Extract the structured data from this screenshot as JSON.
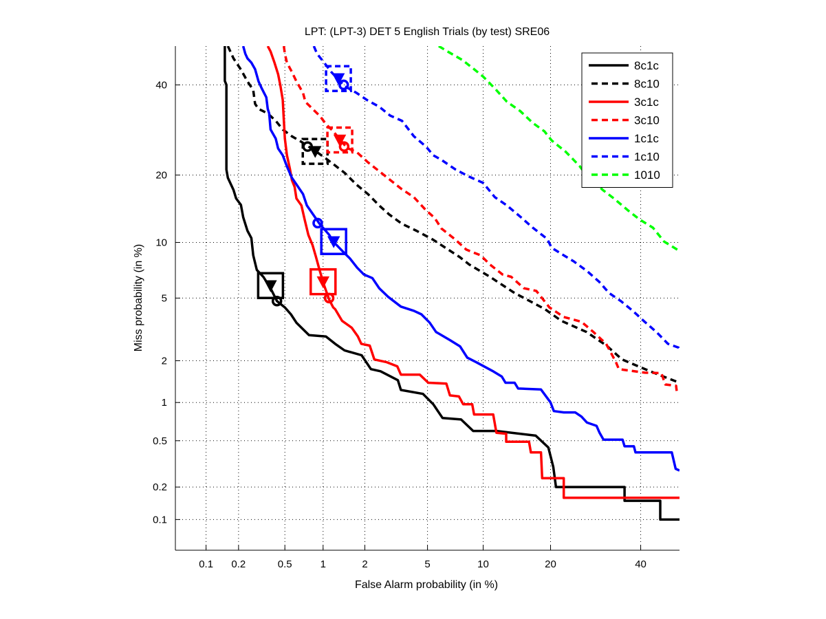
{
  "chart_data": {
    "type": "line",
    "scale": "normal-deviate (DET)",
    "title": "LPT: (LPT-3) DET 5 English Trials (by test) SRE06",
    "xlabel": "False Alarm probability (in %)",
    "ylabel": "Miss probability (in %)",
    "xlim": [
      0.05,
      50
    ],
    "ylim": [
      0.05,
      50
    ],
    "xticks": [
      0.1,
      0.2,
      0.5,
      1,
      2,
      5,
      10,
      20,
      40
    ],
    "xtick_labels": [
      "0.1",
      "0.2",
      "0.5",
      "1",
      "2",
      "5",
      "10",
      "20",
      "40"
    ],
    "yticks": [
      0.1,
      0.2,
      0.5,
      1,
      2,
      5,
      10,
      20,
      40
    ],
    "ytick_labels": [
      "0.1",
      "0.2",
      "0.5",
      "1",
      "2",
      "5",
      "10",
      "20",
      "40"
    ],
    "grid": true,
    "legend_position": "top-right",
    "series": [
      {
        "name": "8c1c",
        "color": "#000000",
        "dashed": false,
        "act_marker": [
          0.38,
          5.9
        ],
        "min_marker": [
          0.43,
          4.8
        ],
        "points": [
          [
            0.15,
            50
          ],
          [
            0.15,
            41
          ],
          [
            0.155,
            40
          ],
          [
            0.155,
            21
          ],
          [
            0.16,
            19.5
          ],
          [
            0.18,
            17.4
          ],
          [
            0.19,
            16
          ],
          [
            0.21,
            15
          ],
          [
            0.22,
            13.2
          ],
          [
            0.24,
            11.4
          ],
          [
            0.26,
            10.5
          ],
          [
            0.27,
            8.6
          ],
          [
            0.29,
            7.2
          ],
          [
            0.33,
            6.6
          ],
          [
            0.38,
            5.7
          ],
          [
            0.43,
            4.8
          ],
          [
            0.5,
            4.4
          ],
          [
            0.56,
            4.0
          ],
          [
            0.62,
            3.55
          ],
          [
            0.78,
            2.96
          ],
          [
            1.05,
            2.9
          ],
          [
            1.23,
            2.6
          ],
          [
            1.44,
            2.35
          ],
          [
            1.9,
            2.18
          ],
          [
            2.2,
            1.75
          ],
          [
            2.55,
            1.69
          ],
          [
            3.3,
            1.46
          ],
          [
            3.45,
            1.24
          ],
          [
            4.7,
            1.16
          ],
          [
            5.4,
            0.97
          ],
          [
            6.1,
            0.76
          ],
          [
            7.7,
            0.74
          ],
          [
            8.9,
            0.6
          ],
          [
            11.6,
            0.6
          ],
          [
            17.4,
            0.55
          ],
          [
            19.6,
            0.44
          ],
          [
            20.5,
            0.3
          ],
          [
            21,
            0.2
          ],
          [
            36,
            0.2
          ],
          [
            36,
            0.15
          ],
          [
            45,
            0.15
          ],
          [
            45,
            0.1
          ],
          [
            50,
            0.1
          ]
        ]
      },
      {
        "name": "8c10",
        "color": "#000000",
        "dashed": true,
        "act_marker": [
          0.87,
          24.6
        ],
        "min_marker": [
          0.76,
          25.6
        ],
        "points": [
          [
            0.16,
            50
          ],
          [
            0.18,
            46.8
          ],
          [
            0.21,
            43.9
          ],
          [
            0.24,
            40.9
          ],
          [
            0.27,
            38.7
          ],
          [
            0.28,
            35.3
          ],
          [
            0.3,
            34.1
          ],
          [
            0.36,
            33
          ],
          [
            0.42,
            31.3
          ],
          [
            0.48,
            29.3
          ],
          [
            0.57,
            27.8
          ],
          [
            0.67,
            26.7
          ],
          [
            0.86,
            24.8
          ],
          [
            1.02,
            23.4
          ],
          [
            1.2,
            22
          ],
          [
            1.44,
            20.4
          ],
          [
            1.75,
            18.3
          ],
          [
            2.1,
            16.7
          ],
          [
            2.5,
            14.9
          ],
          [
            2.9,
            13.6
          ],
          [
            3.5,
            12.3
          ],
          [
            4.3,
            11.4
          ],
          [
            5.4,
            10.3
          ],
          [
            7.6,
            8.4
          ],
          [
            8.5,
            7.7
          ],
          [
            10.8,
            6.6
          ],
          [
            14.1,
            5.35
          ],
          [
            19,
            4.3
          ],
          [
            22,
            3.65
          ],
          [
            27.2,
            3.1
          ],
          [
            31.7,
            2.53
          ],
          [
            35.4,
            2.04
          ],
          [
            41.1,
            1.75
          ],
          [
            45.3,
            1.57
          ],
          [
            50,
            1.4
          ]
        ]
      },
      {
        "name": "3c1c",
        "color": "#ff0000",
        "dashed": false,
        "act_marker": [
          1.0,
          6.2
        ],
        "min_marker": [
          1.11,
          5.0
        ],
        "points": [
          [
            0.36,
            50
          ],
          [
            0.38,
            48.6
          ],
          [
            0.41,
            45.7
          ],
          [
            0.44,
            42.7
          ],
          [
            0.46,
            39.7
          ],
          [
            0.48,
            36.3
          ],
          [
            0.49,
            31.4
          ],
          [
            0.5,
            27.3
          ],
          [
            0.52,
            23.8
          ],
          [
            0.55,
            21.1
          ],
          [
            0.57,
            19.1
          ],
          [
            0.6,
            17.9
          ],
          [
            0.62,
            16
          ],
          [
            0.68,
            14.9
          ],
          [
            0.72,
            12.9
          ],
          [
            0.77,
            10.9
          ],
          [
            0.83,
            9.7
          ],
          [
            0.88,
            8.5
          ],
          [
            0.94,
            7.2
          ],
          [
            1.02,
            5.9
          ],
          [
            1.11,
            4.9
          ],
          [
            1.19,
            4.4
          ],
          [
            1.23,
            4.3
          ],
          [
            1.38,
            3.65
          ],
          [
            1.62,
            3.3
          ],
          [
            1.79,
            2.9
          ],
          [
            1.89,
            2.6
          ],
          [
            2.16,
            2.53
          ],
          [
            2.32,
            2.04
          ],
          [
            2.78,
            1.96
          ],
          [
            3.27,
            1.83
          ],
          [
            3.45,
            1.6
          ],
          [
            4.5,
            1.6
          ],
          [
            5.05,
            1.4
          ],
          [
            6.4,
            1.38
          ],
          [
            6.7,
            1.13
          ],
          [
            7.5,
            1.11
          ],
          [
            7.9,
            0.97
          ],
          [
            8.8,
            0.97
          ],
          [
            9.0,
            0.81
          ],
          [
            11.2,
            0.81
          ],
          [
            11.6,
            0.58
          ],
          [
            12.9,
            0.57
          ],
          [
            12.9,
            0.49
          ],
          [
            16.3,
            0.49
          ],
          [
            16.6,
            0.4
          ],
          [
            18.3,
            0.4
          ],
          [
            18.5,
            0.24
          ],
          [
            22.5,
            0.24
          ],
          [
            22.5,
            0.16
          ],
          [
            50,
            0.16
          ]
        ]
      },
      {
        "name": "3c10",
        "color": "#ff0000",
        "dashed": true,
        "act_marker": [
          1.33,
          27
        ],
        "min_marker": [
          1.43,
          25.6
        ],
        "points": [
          [
            0.49,
            50
          ],
          [
            0.5,
            48
          ],
          [
            0.52,
            45.7
          ],
          [
            0.57,
            43.3
          ],
          [
            0.62,
            40.9
          ],
          [
            0.7,
            38
          ],
          [
            0.73,
            35.8
          ],
          [
            0.83,
            34.1
          ],
          [
            0.94,
            32.5
          ],
          [
            1.06,
            30.4
          ],
          [
            1.19,
            28.9
          ],
          [
            1.5,
            25.3
          ],
          [
            1.75,
            24.5
          ],
          [
            2.1,
            22.4
          ],
          [
            2.5,
            20.7
          ],
          [
            2.95,
            19.1
          ],
          [
            3.5,
            17.5
          ],
          [
            4.15,
            16.2
          ],
          [
            4.9,
            14.2
          ],
          [
            5.5,
            13.1
          ],
          [
            6.0,
            11.7
          ],
          [
            7.2,
            10.3
          ],
          [
            8.2,
            9.2
          ],
          [
            9.7,
            8.6
          ],
          [
            10.8,
            7.7
          ],
          [
            12.4,
            6.8
          ],
          [
            13.6,
            6.6
          ],
          [
            15.5,
            5.7
          ],
          [
            17.5,
            5.5
          ],
          [
            19.8,
            4.4
          ],
          [
            22.5,
            3.85
          ],
          [
            26.1,
            3.6
          ],
          [
            28.7,
            3.1
          ],
          [
            31.6,
            2.6
          ],
          [
            33.9,
            1.96
          ],
          [
            34.6,
            1.75
          ],
          [
            41.1,
            1.65
          ],
          [
            45.3,
            1.64
          ],
          [
            46.3,
            1.36
          ],
          [
            49.1,
            1.33
          ],
          [
            49.3,
            1.2
          ],
          [
            50,
            1.2
          ]
        ]
      },
      {
        "name": "1c1c",
        "color": "#0000ff",
        "dashed": false,
        "act_marker": [
          1.2,
          10.1
        ],
        "min_marker": [
          0.91,
          12.4
        ],
        "points": [
          [
            0.22,
            50
          ],
          [
            0.23,
            48
          ],
          [
            0.24,
            46.8
          ],
          [
            0.26,
            45.7
          ],
          [
            0.28,
            44
          ],
          [
            0.3,
            40.9
          ],
          [
            0.32,
            39.1
          ],
          [
            0.35,
            36.9
          ],
          [
            0.36,
            34.1
          ],
          [
            0.37,
            33
          ],
          [
            0.38,
            29.3
          ],
          [
            0.42,
            27.3
          ],
          [
            0.44,
            25.2
          ],
          [
            0.48,
            23.8
          ],
          [
            0.52,
            21.6
          ],
          [
            0.57,
            19.5
          ],
          [
            0.64,
            17.9
          ],
          [
            0.7,
            16.7
          ],
          [
            0.75,
            14.9
          ],
          [
            0.86,
            13.3
          ],
          [
            0.94,
            12.3
          ],
          [
            1.11,
            10.9
          ],
          [
            1.19,
            10.1
          ],
          [
            1.4,
            9
          ],
          [
            1.57,
            8.3
          ],
          [
            1.77,
            7.4
          ],
          [
            1.97,
            6.8
          ],
          [
            2.25,
            6.5
          ],
          [
            2.5,
            5.7
          ],
          [
            2.85,
            5.1
          ],
          [
            3.45,
            4.45
          ],
          [
            4.15,
            4.2
          ],
          [
            4.6,
            4.0
          ],
          [
            5.15,
            3.55
          ],
          [
            5.6,
            3.1
          ],
          [
            6.7,
            2.75
          ],
          [
            7.6,
            2.5
          ],
          [
            8.3,
            2.1
          ],
          [
            9.2,
            1.96
          ],
          [
            11.1,
            1.7
          ],
          [
            12.3,
            1.55
          ],
          [
            12.8,
            1.4
          ],
          [
            14.1,
            1.4
          ],
          [
            14.6,
            1.27
          ],
          [
            18.3,
            1.25
          ],
          [
            20,
            1.0
          ],
          [
            20.6,
            0.86
          ],
          [
            22.5,
            0.84
          ],
          [
            24.8,
            0.84
          ],
          [
            26.1,
            0.78
          ],
          [
            27.3,
            0.7
          ],
          [
            29.4,
            0.66
          ],
          [
            30.1,
            0.58
          ],
          [
            31,
            0.51
          ],
          [
            35.5,
            0.51
          ],
          [
            36,
            0.45
          ],
          [
            38.3,
            0.45
          ],
          [
            38.7,
            0.4
          ],
          [
            48,
            0.4
          ],
          [
            49,
            0.29
          ],
          [
            50,
            0.28
          ]
        ]
      },
      {
        "name": "1c10",
        "color": "#0000ff",
        "dashed": true,
        "act_marker": [
          1.3,
          41.6
        ],
        "min_marker": [
          1.42,
          40
        ],
        "points": [
          [
            0.85,
            50
          ],
          [
            0.9,
            48
          ],
          [
            1.02,
            45.7
          ],
          [
            1.15,
            43.3
          ],
          [
            1.44,
            39.7
          ],
          [
            1.75,
            38
          ],
          [
            2.1,
            36.1
          ],
          [
            2.5,
            34.6
          ],
          [
            2.95,
            32.5
          ],
          [
            3.5,
            31.3
          ],
          [
            4.15,
            27.8
          ],
          [
            4.9,
            25.6
          ],
          [
            5.4,
            23.8
          ],
          [
            6.0,
            22.9
          ],
          [
            7.2,
            21
          ],
          [
            8.5,
            19.7
          ],
          [
            10,
            18.6
          ],
          [
            11.4,
            16.2
          ],
          [
            13,
            14.9
          ],
          [
            14.9,
            13.3
          ],
          [
            16.9,
            11.8
          ],
          [
            19.4,
            10.4
          ],
          [
            20.2,
            9.4
          ],
          [
            22.5,
            8.6
          ],
          [
            24.5,
            8.0
          ],
          [
            27.3,
            7.1
          ],
          [
            30,
            6.2
          ],
          [
            32.3,
            5.35
          ],
          [
            35.1,
            4.8
          ],
          [
            38,
            4.2
          ],
          [
            41,
            3.6
          ],
          [
            44,
            3.1
          ],
          [
            47,
            2.6
          ],
          [
            49.8,
            2.45
          ],
          [
            50,
            2.3
          ]
        ]
      },
      {
        "name": "1010",
        "color": "#00ff00",
        "dashed": true,
        "points": [
          [
            5.8,
            50
          ],
          [
            6.5,
            48.6
          ],
          [
            7.8,
            46.4
          ],
          [
            9.0,
            44
          ],
          [
            10,
            42.1
          ],
          [
            11.4,
            39.1
          ],
          [
            13,
            35.8
          ],
          [
            14.9,
            33.6
          ],
          [
            16.9,
            30.8
          ],
          [
            18.9,
            28.9
          ],
          [
            20.2,
            26.9
          ],
          [
            22.9,
            24.5
          ],
          [
            25.7,
            21.7
          ],
          [
            26.8,
            20.4
          ],
          [
            30.8,
            17.4
          ],
          [
            33.4,
            16
          ],
          [
            36.8,
            14.2
          ],
          [
            39.7,
            12.9
          ],
          [
            43.1,
            11.8
          ],
          [
            46,
            10.1
          ],
          [
            49.8,
            9.1
          ],
          [
            50,
            9.0
          ]
        ]
      }
    ]
  }
}
